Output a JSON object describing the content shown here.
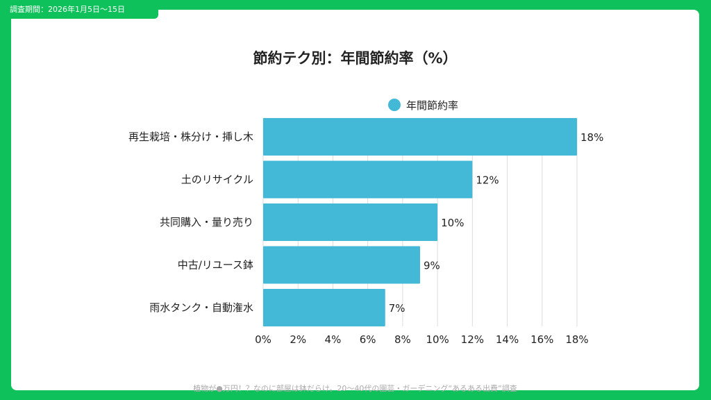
{
  "header": {
    "survey_period": "調査期間：2026年1月5日〜15日"
  },
  "footer": {
    "source": "植物が●万円！？なのに部屋は鉢だらけ。20〜40代の園芸・ガーデニング“あるある出費”調査"
  },
  "colors": {
    "background": "#0fc15b",
    "bar": "#43b8d7",
    "grid": "#dddddd"
  },
  "chart_data": {
    "type": "bar",
    "orientation": "horizontal",
    "title": "節約テク別：年間節約率（%）",
    "legend": [
      "年間節約率"
    ],
    "legend_position": "top",
    "categories": [
      "再生栽培・株分け・挿し木",
      "土のリサイクル",
      "共同購入・量り売り",
      "中古/リユース鉢",
      "雨水タンク・自動潅水"
    ],
    "series": [
      {
        "name": "年間節約率",
        "values": [
          18,
          12,
          10,
          9,
          7
        ]
      }
    ],
    "value_labels": [
      "18%",
      "12%",
      "10%",
      "9%",
      "7%"
    ],
    "xlim": [
      0,
      18
    ],
    "xticks": [
      0,
      2,
      4,
      6,
      8,
      10,
      12,
      14,
      16,
      18
    ],
    "xtick_labels": [
      "0%",
      "2%",
      "4%",
      "6%",
      "8%",
      "10%",
      "12%",
      "14%",
      "16%",
      "18%"
    ],
    "grid": true
  }
}
